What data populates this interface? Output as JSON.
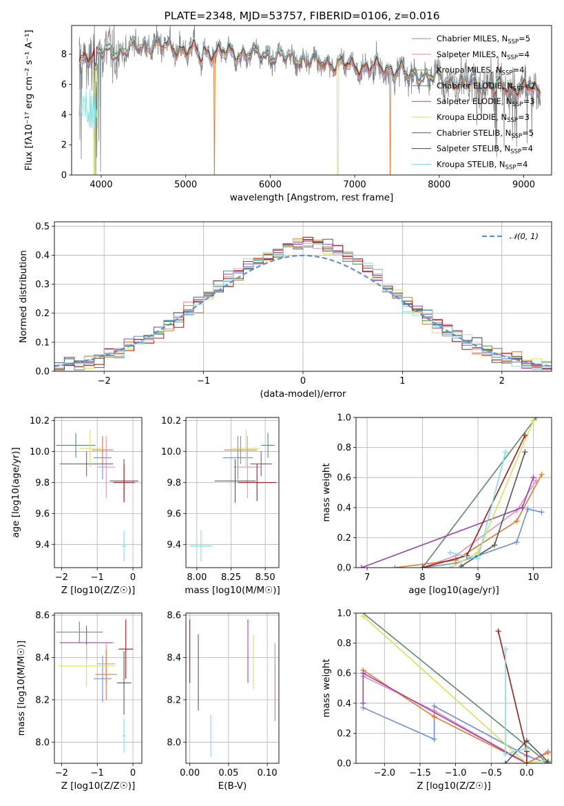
{
  "colors": {
    "Chabrier MILES": "#6a8fd8",
    "Salpeter MILES": "#e88fbf",
    "Kroupa MILES": "#e07a2e",
    "Chabrier ELODIE": "#5a8a68",
    "Salpeter ELODIE": "#a040b0",
    "Kroupa ELODIE": "#d6e05a",
    "Chabrier STELIB": "#555555",
    "Salpeter STELIB": "#a01818",
    "Kroupa STELIB": "#7ee0e0"
  },
  "chart_data": [
    {
      "id": "spectrum",
      "type": "line",
      "title": "PLATE=2348, MJD=53757, FIBERID=0106, z=0.016",
      "xlabel": "wavelength [Angstrom, rest frame]",
      "ylabel": "Flux [fλ10⁻¹⁷ erg cm⁻² s⁻¹ A⁻¹]",
      "xlim": [
        3650,
        9330
      ],
      "ylim": [
        0,
        9.9
      ],
      "xticks": [
        4000,
        5000,
        6000,
        7000,
        8000,
        9000
      ],
      "yticks": [
        0,
        2,
        4,
        6,
        8
      ],
      "legend": [
        "Chabrier MILES, N_SSP=5",
        "Salpeter MILES, N_SSP=4",
        "Kroupa MILES, N_SSP=4",
        "Chabrier ELODIE, N_SSP=2",
        "Salpeter ELODIE, N_SSP=3",
        "Kroupa ELODIE, N_SSP=3",
        "Chabrier STELIB, N_SSP=5",
        "Salpeter STELIB, N_SSP=4",
        "Kroupa STELIB, N_SSP=4"
      ],
      "legend_position": "upper right",
      "continuum": {
        "x": [
          3750,
          3900,
          4100,
          4300,
          4600,
          5000,
          5500,
          6000,
          6500,
          7000,
          7500,
          8000,
          8500,
          9000,
          9330
        ],
        "y": [
          7.5,
          8.0,
          8.1,
          8.3,
          8.7,
          8.3,
          8.0,
          7.9,
          7.6,
          7.2,
          6.9,
          6.4,
          6.0,
          5.7,
          5.5
        ]
      },
      "observed_color": "#808080",
      "model_dips": [
        {
          "model": "Kroupa MILES",
          "x": 5340
        },
        {
          "model": "Kroupa ELODIE",
          "x": 3920
        },
        {
          "model": "Kroupa ELODIE",
          "x": 6800
        },
        {
          "model": "Kroupa MILES",
          "x": 7420
        }
      ]
    },
    {
      "id": "residuals",
      "type": "histogram",
      "xlabel": "(data-model)/error",
      "ylabel": "Normed distribution",
      "xlim": [
        -2.5,
        2.5
      ],
      "ylim": [
        0,
        0.515
      ],
      "xticks": [
        -2,
        -1,
        0,
        1,
        2
      ],
      "yticks": [
        0.0,
        0.1,
        0.2,
        0.3,
        0.4,
        0.5
      ],
      "bin_width": 0.1,
      "reference_curve": {
        "label": "𝒩(0, 1)",
        "color": "#5b8fd8",
        "mean": 0,
        "sigma": 1
      }
    },
    {
      "id": "age-vs-Z",
      "type": "scatter",
      "xlabel": "Z [log10(Z/Z☉)]",
      "ylabel": "age  [log10(age/yr)]",
      "xlim": [
        -2.2,
        0.25
      ],
      "ylim": [
        9.25,
        10.22
      ],
      "xticks": [
        -2,
        -1,
        0
      ],
      "yticks": [
        9.4,
        9.6,
        9.8,
        10.0,
        10.2
      ],
      "points": [
        {
          "model": "Chabrier MILES",
          "x": -0.85,
          "y": 9.96,
          "xerr": 0.25,
          "yerr": 0.14
        },
        {
          "model": "Salpeter MILES",
          "x": -0.75,
          "y": 9.9,
          "xerr": 0.25,
          "yerr": 0.2
        },
        {
          "model": "Kroupa MILES",
          "x": -0.85,
          "y": 10.01,
          "xerr": 0.3,
          "yerr": 0.09
        },
        {
          "model": "Chabrier ELODIE",
          "x": -1.6,
          "y": 10.04,
          "xerr": 0.55,
          "yerr": 0.08
        },
        {
          "model": "Salpeter ELODIE",
          "x": -1.3,
          "y": 9.92,
          "xerr": 0.75,
          "yerr": 0.08
        },
        {
          "model": "Kroupa ELODIE",
          "x": -1.2,
          "y": 10.02,
          "xerr": 0.3,
          "yerr": 0.12
        },
        {
          "model": "Chabrier STELIB",
          "x": -0.25,
          "y": 9.81,
          "xerr": 0.4,
          "yerr": 0.14
        },
        {
          "model": "Salpeter STELIB",
          "x": -0.25,
          "y": 9.8,
          "xerr": 0.3,
          "yerr": 0.12
        },
        {
          "model": "Kroupa STELIB",
          "x": -0.25,
          "y": 9.39,
          "xerr": 0.05,
          "yerr": 0.1
        }
      ]
    },
    {
      "id": "age-vs-mass",
      "type": "scatter",
      "xlabel": "mass [log10(M/M☉)]",
      "ylabel": "",
      "xlim": [
        7.92,
        8.6
      ],
      "ylim": [
        9.25,
        10.22
      ],
      "xticks": [
        8.0,
        8.25,
        8.5
      ],
      "yticks": [
        9.4,
        9.6,
        9.8,
        10.0,
        10.2
      ],
      "points": [
        {
          "model": "Chabrier MILES",
          "x": 8.3,
          "y": 9.96,
          "xerr": 0.11,
          "yerr": 0.14
        },
        {
          "model": "Salpeter MILES",
          "x": 8.37,
          "y": 9.9,
          "xerr": 0.1,
          "yerr": 0.2
        },
        {
          "model": "Kroupa MILES",
          "x": 8.32,
          "y": 10.01,
          "xerr": 0.12,
          "yerr": 0.09
        },
        {
          "model": "Chabrier ELODIE",
          "x": 8.52,
          "y": 10.04,
          "xerr": 0.05,
          "yerr": 0.08
        },
        {
          "model": "Salpeter ELODIE",
          "x": 8.47,
          "y": 9.92,
          "xerr": 0.08,
          "yerr": 0.08
        },
        {
          "model": "Kroupa ELODIE",
          "x": 8.36,
          "y": 10.02,
          "xerr": 0.1,
          "yerr": 0.12
        },
        {
          "model": "Chabrier STELIB",
          "x": 8.28,
          "y": 9.81,
          "xerr": 0.15,
          "yerr": 0.14
        },
        {
          "model": "Salpeter STELIB",
          "x": 8.44,
          "y": 9.8,
          "xerr": 0.14,
          "yerr": 0.12
        },
        {
          "model": "Kroupa STELIB",
          "x": 8.03,
          "y": 9.39,
          "xerr": 0.08,
          "yerr": 0.1
        }
      ]
    },
    {
      "id": "mass-weight-vs-age",
      "type": "line",
      "xlabel": "age  [log10(age/yr)]",
      "ylabel": "mass weight",
      "xlim": [
        6.8,
        10.33
      ],
      "ylim": [
        0,
        1.0
      ],
      "xticks": [
        7,
        8,
        9,
        10
      ],
      "yticks": [
        0.0,
        0.2,
        0.4,
        0.6,
        0.8,
        1.0
      ],
      "series": [
        {
          "model": "Chabrier MILES",
          "x": [
            8.0,
            8.6,
            9.0,
            9.7,
            9.9,
            10.15
          ],
          "y": [
            0.0,
            0.03,
            0.08,
            0.17,
            0.39,
            0.37
          ]
        },
        {
          "model": "Salpeter MILES",
          "x": [
            8.0,
            8.6,
            9.7,
            10.05
          ],
          "y": [
            0.0,
            0.08,
            0.38,
            0.58
          ]
        },
        {
          "model": "Kroupa MILES",
          "x": [
            7.5,
            8.6,
            9.7,
            10.15
          ],
          "y": [
            0.0,
            0.05,
            0.31,
            0.62
          ]
        },
        {
          "model": "Chabrier ELODIE",
          "x": [
            8.0,
            10.05
          ],
          "y": [
            0.0,
            1.0
          ]
        },
        {
          "model": "Salpeter ELODIE",
          "x": [
            6.9,
            9.8,
            10.0
          ],
          "y": [
            0.0,
            0.4,
            0.6
          ]
        },
        {
          "model": "Kroupa ELODIE",
          "x": [
            8.5,
            9.0,
            10.0
          ],
          "y": [
            0.0,
            0.1,
            0.98
          ]
        },
        {
          "model": "Chabrier STELIB",
          "x": [
            8.7,
            9.3,
            9.85
          ],
          "y": [
            0.01,
            0.15,
            0.77
          ]
        },
        {
          "model": "Salpeter STELIB",
          "x": [
            8.0,
            8.8,
            9.85
          ],
          "y": [
            0.0,
            0.08,
            0.88
          ]
        },
        {
          "model": "Kroupa STELIB",
          "x": [
            8.5,
            9.0,
            9.5
          ],
          "y": [
            0.1,
            0.06,
            0.77
          ]
        }
      ]
    },
    {
      "id": "mass-vs-Z",
      "type": "scatter",
      "xlabel": "Z [log10(Z/Z☉)]",
      "ylabel": "mass [log10(M/M☉)]",
      "xlim": [
        -2.2,
        0.25
      ],
      "ylim": [
        7.9,
        8.61
      ],
      "xticks": [
        -2,
        -1,
        0
      ],
      "yticks": [
        8.0,
        8.2,
        8.4,
        8.6
      ],
      "points": [
        {
          "model": "Chabrier MILES",
          "x": -0.85,
          "y": 8.3,
          "xerr": 0.25,
          "yerr": 0.11
        },
        {
          "model": "Salpeter MILES",
          "x": -0.75,
          "y": 8.37,
          "xerr": 0.25,
          "yerr": 0.1
        },
        {
          "model": "Kroupa MILES",
          "x": -0.75,
          "y": 8.32,
          "xerr": 0.3,
          "yerr": 0.12
        },
        {
          "model": "Chabrier ELODIE",
          "x": -1.5,
          "y": 8.52,
          "xerr": 0.65,
          "yerr": 0.05
        },
        {
          "model": "Salpeter ELODIE",
          "x": -1.3,
          "y": 8.47,
          "xerr": 0.75,
          "yerr": 0.08
        },
        {
          "model": "Kroupa ELODIE",
          "x": -1.3,
          "y": 8.36,
          "xerr": 0.8,
          "yerr": 0.1
        },
        {
          "model": "Chabrier STELIB",
          "x": -0.25,
          "y": 8.28,
          "xerr": 0.2,
          "yerr": 0.15
        },
        {
          "model": "Salpeter STELIB",
          "x": -0.2,
          "y": 8.44,
          "xerr": 0.2,
          "yerr": 0.14
        },
        {
          "model": "Kroupa STELIB",
          "x": -0.25,
          "y": 8.03,
          "xerr": 0.05,
          "yerr": 0.08
        }
      ]
    },
    {
      "id": "mass-vs-EBV",
      "type": "scatter",
      "xlabel": "E(B-V)",
      "ylabel": "",
      "xlim": [
        -0.005,
        0.115
      ],
      "ylim": [
        7.9,
        8.61
      ],
      "xticks": [
        0.0,
        0.05,
        0.1
      ],
      "yticks": [
        8.0,
        8.2,
        8.4,
        8.6
      ],
      "points": [
        {
          "model": "Salpeter STELIB",
          "x": 0.0,
          "y": 8.43,
          "xerr": 0.0,
          "yerr": 0.15
        },
        {
          "model": "Chabrier STELIB",
          "x": 0.011,
          "y": 8.33,
          "xerr": 0.0,
          "yerr": 0.18
        },
        {
          "model": "Kroupa STELIB",
          "x": 0.027,
          "y": 8.03,
          "xerr": 0.0,
          "yerr": 0.1
        },
        {
          "model": "Salpeter ELODIE",
          "x": 0.075,
          "y": 8.43,
          "xerr": 0.0,
          "yerr": 0.15
        },
        {
          "model": "Kroupa ELODIE",
          "x": 0.082,
          "y": 8.38,
          "xerr": 0.0,
          "yerr": 0.13
        },
        {
          "model": "Kroupa MILES",
          "x": 0.11,
          "y": 8.28,
          "xerr": 0.0,
          "yerr": 0.18
        },
        {
          "model": "Salpeter MILES",
          "x": 0.11,
          "y": 8.42,
          "xerr": 0.0,
          "yerr": 0.05
        }
      ]
    },
    {
      "id": "mass-weight-vs-Z",
      "type": "line",
      "xlabel": "Z [log10(Z/Z☉)]",
      "ylabel": "mass weight",
      "xlim": [
        -2.4,
        0.35
      ],
      "ylim": [
        0,
        1.0
      ],
      "xticks": [
        -2.0,
        -1.5,
        -1.0,
        -0.5,
        0.0
      ],
      "yticks": [
        0.0,
        0.2,
        0.4,
        0.6,
        0.8,
        1.0
      ],
      "series": [
        {
          "model": "Chabrier MILES",
          "x": [
            -2.3,
            -1.3,
            -1.3,
            0.0,
            0.3
          ],
          "y": [
            0.37,
            0.16,
            0.38,
            0.05,
            0.0
          ]
        },
        {
          "model": "Salpeter MILES",
          "x": [
            -2.3,
            -1.3,
            0.0,
            0.3
          ],
          "y": [
            0.58,
            0.35,
            0.0,
            0.08
          ]
        },
        {
          "model": "Kroupa MILES",
          "x": [
            -2.3,
            -1.3,
            0.0,
            0.3
          ],
          "y": [
            0.62,
            0.31,
            0.0,
            0.07
          ]
        },
        {
          "model": "Chabrier ELODIE",
          "x": [
            -2.3,
            0.3
          ],
          "y": [
            1.0,
            0.0
          ]
        },
        {
          "model": "Salpeter ELODIE",
          "x": [
            -2.3,
            -2.3,
            0.0
          ],
          "y": [
            0.4,
            0.6,
            0.0
          ]
        },
        {
          "model": "Kroupa ELODIE",
          "x": [
            -2.3,
            0.0,
            0.3
          ],
          "y": [
            0.98,
            0.0,
            0.02
          ]
        },
        {
          "model": "Chabrier STELIB",
          "x": [
            -0.3,
            0.0,
            0.3
          ],
          "y": [
            0.0,
            0.15,
            0.01
          ]
        },
        {
          "model": "Salpeter STELIB",
          "x": [
            -0.4,
            0.0,
            0.0
          ],
          "y": [
            0.88,
            0.08,
            0.0
          ]
        },
        {
          "model": "Kroupa STELIB",
          "x": [
            -0.3,
            -0.3,
            0.0
          ],
          "y": [
            0.76,
            0.06,
            0.1
          ]
        }
      ]
    }
  ]
}
